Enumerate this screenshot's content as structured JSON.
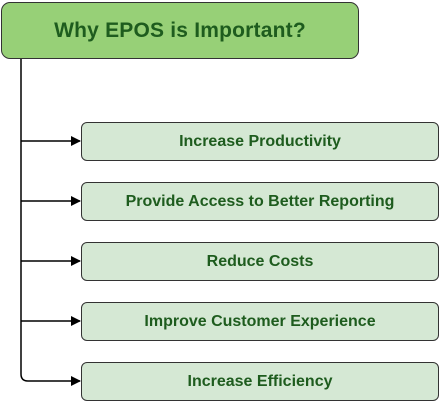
{
  "title": "Why EPOS is Important?",
  "items": [
    "Increase Productivity",
    "Provide Access to Better Reporting",
    "Reduce Costs",
    "Improve Customer Experience",
    "Increase Efficiency"
  ],
  "colors": {
    "title_fill": "#97d077",
    "item_fill": "#d5e8d4",
    "text": "#1e5c1e",
    "stroke": "#333333",
    "connector": "#000000"
  }
}
